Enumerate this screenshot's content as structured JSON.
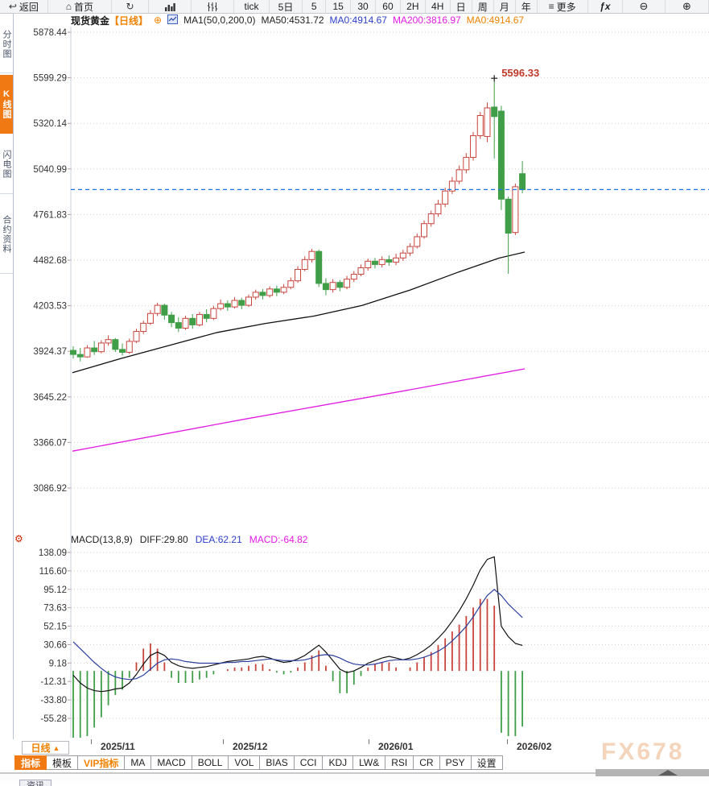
{
  "toolbar": {
    "items": [
      {
        "id": "back",
        "glyph": "↩",
        "label": "返回"
      },
      {
        "id": "home",
        "glyph": "⌂",
        "label": "首页"
      },
      {
        "id": "refresh",
        "glyph": "↻",
        "label": ""
      },
      {
        "id": "bar-chart",
        "icon": "bars",
        "label": ""
      },
      {
        "id": "candle-chart",
        "icon": "candles",
        "label": ""
      },
      {
        "id": "tick",
        "label": "tick"
      },
      {
        "id": "5d",
        "label": "5日"
      },
      {
        "id": "5",
        "label": "5"
      },
      {
        "id": "15",
        "label": "15"
      },
      {
        "id": "30",
        "label": "30"
      },
      {
        "id": "60",
        "label": "60"
      },
      {
        "id": "2h",
        "label": "2H"
      },
      {
        "id": "4h",
        "label": "4H"
      },
      {
        "id": "day",
        "label": "日"
      },
      {
        "id": "week",
        "label": "周"
      },
      {
        "id": "month",
        "label": "月"
      },
      {
        "id": "year",
        "label": "年"
      },
      {
        "id": "more",
        "glyph": "≡",
        "label": "更多"
      },
      {
        "id": "fx",
        "label": "ƒx"
      },
      {
        "id": "zoom-out",
        "label": "⊖"
      },
      {
        "id": "zoom-in",
        "label": "⊕"
      }
    ]
  },
  "sidebar": {
    "items": [
      {
        "label": "分时图",
        "active": false
      },
      {
        "label": "K线图",
        "active": true
      },
      {
        "label": "闪电图",
        "active": false
      },
      {
        "label": "合约资料",
        "active": false
      }
    ]
  },
  "header": {
    "symbol": "现货黄金",
    "period_tag": "【日线】",
    "add_icon": "⊕",
    "ma_settings": "MA1(50,0,200,0)",
    "ma50": "MA50:4531.72",
    "ma0_blue": "MA0:4914.67",
    "ma200": "MA200:3816.97",
    "ma0_orange": "MA0:4914.67"
  },
  "macd_header": {
    "settings_icon": "⚙",
    "title": "MACD(13,8,9)",
    "diff": "DIFF:29.80",
    "dea": "DEA:62.21",
    "macd": "MACD:-64.82"
  },
  "period_selector": {
    "label": "日线",
    "arrow": "▲"
  },
  "bottom_tabs": [
    {
      "label": "指标",
      "style": "active"
    },
    {
      "label": "模板",
      "style": ""
    },
    {
      "label": "VIP指标",
      "style": "vip"
    },
    {
      "label": "MA",
      "style": ""
    },
    {
      "label": "MACD",
      "style": ""
    },
    {
      "label": "BOLL",
      "style": ""
    },
    {
      "label": "VOL",
      "style": ""
    },
    {
      "label": "BIAS",
      "style": ""
    },
    {
      "label": "CCI",
      "style": ""
    },
    {
      "label": "KDJ",
      "style": ""
    },
    {
      "label": "LW&",
      "style": ""
    },
    {
      "label": "RSI",
      "style": ""
    },
    {
      "label": "CR",
      "style": ""
    },
    {
      "label": "PSY",
      "style": ""
    },
    {
      "label": "设置",
      "style": ""
    }
  ],
  "watermark": "FX678",
  "bottom_partial_tab": "资讯",
  "colors": {
    "up": "#c9443c",
    "down": "#3f9e47",
    "ma50": "#111111",
    "ma200": "#e31ae3",
    "diff": "#111111",
    "dea": "#2b3f9e",
    "price_line": "#1a73e8",
    "accent_orange": "#f08200",
    "annotation": "#c0392b",
    "grid": "#dfc9c9",
    "axis_line": "#c9d3e2"
  },
  "chart_data": {
    "type": "candlestick+macd",
    "symbol": "现货黄金",
    "period": "日线",
    "main": {
      "y_ticks": [
        "5878.44",
        "5599.29",
        "5320.14",
        "5040.99",
        "4761.83",
        "4482.68",
        "4203.53",
        "3924.37",
        "3645.22",
        "3366.07",
        "3086.92"
      ],
      "y_top_value": 5878.44,
      "y_bottom_value": 3086.92,
      "price_line_value": 4914.67,
      "peak": {
        "x_index": 60,
        "price": 5596.33,
        "label": "5596.33"
      },
      "candles_ohlc": [
        [
          3930,
          3955,
          3880,
          3905
        ],
        [
          3905,
          3945,
          3862,
          3890
        ],
        [
          3890,
          3962,
          3885,
          3945
        ],
        [
          3945,
          3988,
          3902,
          3922
        ],
        [
          3922,
          3992,
          3912,
          3975
        ],
        [
          3975,
          4022,
          3958,
          3996
        ],
        [
          3996,
          4006,
          3920,
          3936
        ],
        [
          3936,
          3972,
          3898,
          3918
        ],
        [
          3918,
          4002,
          3908,
          3985
        ],
        [
          3985,
          4062,
          3975,
          4046
        ],
        [
          4046,
          4112,
          4030,
          4096
        ],
        [
          4096,
          4176,
          4085,
          4156
        ],
        [
          4156,
          4222,
          4140,
          4206
        ],
        [
          4206,
          4216,
          4118,
          4146
        ],
        [
          4146,
          4166,
          4072,
          4100
        ],
        [
          4100,
          4132,
          4042,
          4066
        ],
        [
          4066,
          4142,
          4055,
          4126
        ],
        [
          4126,
          4152,
          4062,
          4086
        ],
        [
          4086,
          4166,
          4076,
          4150
        ],
        [
          4150,
          4182,
          4102,
          4126
        ],
        [
          4126,
          4202,
          4116,
          4186
        ],
        [
          4186,
          4242,
          4175,
          4216
        ],
        [
          4216,
          4236,
          4172,
          4196
        ],
        [
          4196,
          4256,
          4186,
          4236
        ],
        [
          4236,
          4252,
          4182,
          4206
        ],
        [
          4206,
          4272,
          4196,
          4256
        ],
        [
          4256,
          4302,
          4240,
          4286
        ],
        [
          4286,
          4306,
          4242,
          4266
        ],
        [
          4266,
          4322,
          4254,
          4306
        ],
        [
          4306,
          4326,
          4262,
          4286
        ],
        [
          4286,
          4336,
          4274,
          4316
        ],
        [
          4316,
          4376,
          4304,
          4356
        ],
        [
          4356,
          4446,
          4344,
          4426
        ],
        [
          4426,
          4506,
          4414,
          4486
        ],
        [
          4486,
          4552,
          4468,
          4536
        ],
        [
          4536,
          4546,
          4318,
          4340
        ],
        [
          4340,
          4372,
          4268,
          4302
        ],
        [
          4302,
          4366,
          4284,
          4346
        ],
        [
          4346,
          4362,
          4292,
          4316
        ],
        [
          4316,
          4386,
          4304,
          4366
        ],
        [
          4366,
          4416,
          4348,
          4396
        ],
        [
          4396,
          4456,
          4384,
          4436
        ],
        [
          4436,
          4492,
          4418,
          4476
        ],
        [
          4476,
          4496,
          4432,
          4456
        ],
        [
          4456,
          4506,
          4438,
          4486
        ],
        [
          4486,
          4512,
          4448,
          4470
        ],
        [
          4470,
          4522,
          4452,
          4496
        ],
        [
          4496,
          4546,
          4478,
          4526
        ],
        [
          4526,
          4586,
          4508,
          4566
        ],
        [
          4566,
          4646,
          4554,
          4626
        ],
        [
          4626,
          4726,
          4614,
          4706
        ],
        [
          4706,
          4786,
          4688,
          4766
        ],
        [
          4766,
          4852,
          4748,
          4826
        ],
        [
          4826,
          4926,
          4808,
          4906
        ],
        [
          4906,
          4992,
          4888,
          4966
        ],
        [
          4966,
          5062,
          4948,
          5036
        ],
        [
          5036,
          5138,
          5014,
          5112
        ],
        [
          5112,
          5268,
          5092,
          5245
        ],
        [
          5245,
          5390,
          5225,
          5368
        ],
        [
          5240,
          5448,
          5205,
          5415
        ],
        [
          5420,
          5596.33,
          5105,
          5362
        ],
        [
          5395,
          5428,
          4790,
          4856
        ],
        [
          4856,
          4872,
          4399,
          4648
        ],
        [
          4652,
          4952,
          4636,
          4932
        ],
        [
          5012,
          5090,
          4892,
          4914.67
        ]
      ],
      "ma50_points": [
        [
          90,
          3793
        ],
        [
          150,
          3880
        ],
        [
          210,
          3960
        ],
        [
          270,
          4040
        ],
        [
          330,
          4095
        ],
        [
          390,
          4140
        ],
        [
          450,
          4205
        ],
        [
          510,
          4300
        ],
        [
          570,
          4410
        ],
        [
          620,
          4495
        ],
        [
          652,
          4532
        ]
      ],
      "ma200_points": [
        [
          90,
          3313
        ],
        [
          300,
          3505
        ],
        [
          500,
          3680
        ],
        [
          652,
          3817
        ]
      ]
    },
    "macd": {
      "y_ticks": [
        "138.09",
        "116.60",
        "95.12",
        "73.63",
        "52.15",
        "30.66",
        "9.18",
        "-12.31",
        "-33.80",
        "-55.28"
      ],
      "y_top_value": 138.09,
      "y_bottom_value": -55.28,
      "diff": [
        -5,
        -14,
        -20,
        -23,
        -24,
        -23,
        -21,
        -20,
        -14,
        -4,
        8,
        18,
        22,
        18,
        10,
        6,
        4,
        3,
        4,
        5,
        7,
        9,
        11,
        12,
        13,
        14,
        16,
        17,
        15,
        12,
        10,
        11,
        14,
        18,
        24,
        30,
        22,
        12,
        2,
        -2,
        0,
        4,
        9,
        12,
        15,
        17,
        15,
        13,
        15,
        19,
        24,
        30,
        38,
        47,
        58,
        70,
        84,
        100,
        118,
        130,
        133,
        52,
        40,
        32,
        29.8
      ],
      "dea": [
        34,
        26,
        18,
        10,
        3,
        -3,
        -7,
        -9,
        -10,
        -9,
        -5,
        2,
        9,
        13,
        14,
        13,
        11,
        10,
        9,
        9,
        9,
        9,
        10,
        10,
        11,
        11,
        12,
        13,
        14,
        13,
        12,
        12,
        12,
        13,
        15,
        18,
        19,
        18,
        15,
        11,
        8,
        7,
        7,
        8,
        10,
        12,
        13,
        13,
        13,
        14,
        16,
        19,
        23,
        28,
        35,
        43,
        52,
        63,
        76,
        88,
        95,
        88,
        78,
        70,
        62.21
      ],
      "histogram": [
        -78,
        -80,
        -76,
        -66,
        -54,
        -40,
        -28,
        -22,
        -8,
        10,
        26,
        32,
        26,
        10,
        -8,
        -14,
        -14,
        -14,
        -10,
        -8,
        -4,
        0,
        2,
        4,
        4,
        6,
        8,
        8,
        2,
        -2,
        -4,
        -2,
        4,
        10,
        18,
        24,
        6,
        -12,
        -26,
        -26,
        -16,
        -6,
        4,
        8,
        10,
        10,
        4,
        0,
        4,
        10,
        16,
        22,
        30,
        38,
        46,
        54,
        64,
        74,
        84,
        84,
        76,
        -72,
        -76,
        -76,
        -64.82
      ]
    },
    "x_labels": [
      {
        "x": 113,
        "label": "2025/11"
      },
      {
        "x": 277,
        "label": "2025/12"
      },
      {
        "x": 458,
        "label": "2026/01"
      },
      {
        "x": 630,
        "label": "2026/02"
      }
    ]
  }
}
